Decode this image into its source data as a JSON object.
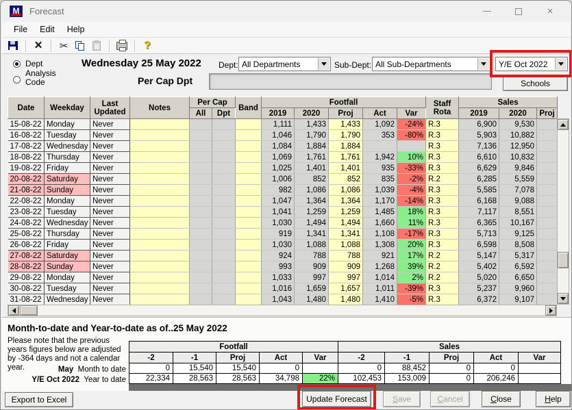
{
  "window": {
    "title": "Forecast"
  },
  "menu": {
    "items": [
      "File",
      "Edit",
      "Help"
    ]
  },
  "toolbar": {
    "icons": [
      "save-icon",
      "delete-icon",
      "cut-icon",
      "copy-icon",
      "paste-icon",
      "print-icon",
      "help-icon"
    ]
  },
  "controls": {
    "radio_dept": "Dept",
    "radio_analysis": "Analysis Code",
    "date_heading": "Wednesday 25 May 2022",
    "dept_label": "Dept:",
    "dept_value": "All Departments",
    "subdept_label": "Sub-Dept:",
    "subdept_value": "All Sub-Departments",
    "year_end_value": "Y/E Oct 2022",
    "percap_label": "Per Cap Dpt",
    "schools_button": "Schools"
  },
  "table": {
    "headers": {
      "date": "Date",
      "weekday": "Weekday",
      "last_updated": "Last Updated",
      "notes": "Notes",
      "per_cap": "Per Cap",
      "all": "All",
      "dpt": "Dpt",
      "band": "Band",
      "footfall": "Footfall",
      "staff_rota": "Staff Rota",
      "sales": "Sales",
      "footfall_cols": [
        "2019",
        "2020",
        "Proj",
        "Act",
        "Var"
      ],
      "sales_cols": [
        "2019",
        "2020",
        "Proj"
      ]
    },
    "rows": [
      {
        "date": "15-08-22",
        "weekday": "Monday",
        "updated": "Never",
        "weekend": false,
        "f2019": "1,111",
        "f2020": "1,433",
        "fproj": "1,433",
        "fact": "1,092",
        "fvar": "-24%",
        "var_color": "red",
        "rota": "R.3",
        "s2019": "6,900",
        "s2020": "9,530"
      },
      {
        "date": "16-08-22",
        "weekday": "Tuesday",
        "updated": "Never",
        "weekend": false,
        "f2019": "1,046",
        "f2020": "1,790",
        "fproj": "1,790",
        "fact": "353",
        "fvar": "-80%",
        "var_color": "red",
        "rota": "R.3",
        "s2019": "5,903",
        "s2020": "10,882"
      },
      {
        "date": "17-08-22",
        "weekday": "Wednesday",
        "updated": "Never",
        "weekend": false,
        "f2019": "1,084",
        "f2020": "1,884",
        "fproj": "1,884",
        "fact": "",
        "fvar": "",
        "var_color": null,
        "rota": "R.3",
        "s2019": "7,136",
        "s2020": "12,950"
      },
      {
        "date": "18-08-22",
        "weekday": "Thursday",
        "updated": "Never",
        "weekend": false,
        "f2019": "1,069",
        "f2020": "1,761",
        "fproj": "1,761",
        "fact": "1,942",
        "fvar": "10%",
        "var_color": "green",
        "rota": "R.3",
        "s2019": "6,610",
        "s2020": "10,832"
      },
      {
        "date": "19-08-22",
        "weekday": "Friday",
        "updated": "Never",
        "weekend": false,
        "f2019": "1,025",
        "f2020": "1,401",
        "fproj": "1,401",
        "fact": "935",
        "fvar": "-33%",
        "var_color": "red",
        "rota": "R.3",
        "s2019": "6,629",
        "s2020": "9,846"
      },
      {
        "date": "20-08-22",
        "weekday": "Saturday",
        "updated": "Never",
        "weekend": true,
        "f2019": "1,006",
        "f2020": "852",
        "fproj": "852",
        "fact": "835",
        "fvar": "-2%",
        "var_color": "red",
        "rota": "R.2",
        "s2019": "6,285",
        "s2020": "5,559"
      },
      {
        "date": "21-08-22",
        "weekday": "Sunday",
        "updated": "Never",
        "weekend": true,
        "f2019": "982",
        "f2020": "1,086",
        "fproj": "1,086",
        "fact": "1,039",
        "fvar": "-4%",
        "var_color": "red",
        "rota": "R.3",
        "s2019": "5,585",
        "s2020": "7,078"
      },
      {
        "date": "22-08-22",
        "weekday": "Monday",
        "updated": "Never",
        "weekend": false,
        "f2019": "1,047",
        "f2020": "1,364",
        "fproj": "1,364",
        "fact": "1,170",
        "fvar": "-14%",
        "var_color": "red",
        "rota": "R.3",
        "s2019": "6,168",
        "s2020": "9,088"
      },
      {
        "date": "23-08-22",
        "weekday": "Tuesday",
        "updated": "Never",
        "weekend": false,
        "f2019": "1,041",
        "f2020": "1,259",
        "fproj": "1,259",
        "fact": "1,485",
        "fvar": "18%",
        "var_color": "green",
        "rota": "R.3",
        "s2019": "7,117",
        "s2020": "8,551"
      },
      {
        "date": "24-08-22",
        "weekday": "Wednesday",
        "updated": "Never",
        "weekend": false,
        "f2019": "1,030",
        "f2020": "1,494",
        "fproj": "1,494",
        "fact": "1,660",
        "fvar": "11%",
        "var_color": "green",
        "rota": "R.3",
        "s2019": "6,365",
        "s2020": "10,167"
      },
      {
        "date": "25-08-22",
        "weekday": "Thursday",
        "updated": "Never",
        "weekend": false,
        "f2019": "919",
        "f2020": "1,341",
        "fproj": "1,341",
        "fact": "1,108",
        "fvar": "-17%",
        "var_color": "red",
        "rota": "R.3",
        "s2019": "5,713",
        "s2020": "9,125"
      },
      {
        "date": "26-08-22",
        "weekday": "Friday",
        "updated": "Never",
        "weekend": false,
        "f2019": "1,030",
        "f2020": "1,088",
        "fproj": "1,088",
        "fact": "1,308",
        "fvar": "20%",
        "var_color": "green",
        "rota": "R.3",
        "s2019": "6,598",
        "s2020": "8,508"
      },
      {
        "date": "27-08-22",
        "weekday": "Saturday",
        "updated": "Never",
        "weekend": true,
        "f2019": "924",
        "f2020": "788",
        "fproj": "788",
        "fact": "921",
        "fvar": "17%",
        "var_color": "green",
        "rota": "R.2",
        "s2019": "5,147",
        "s2020": "5,317"
      },
      {
        "date": "28-08-22",
        "weekday": "Sunday",
        "updated": "Never",
        "weekend": true,
        "f2019": "993",
        "f2020": "909",
        "fproj": "909",
        "fact": "1,268",
        "fvar": "39%",
        "var_color": "green",
        "rota": "R.2",
        "s2019": "5,402",
        "s2020": "6,592"
      },
      {
        "date": "29-08-22",
        "weekday": "Monday",
        "updated": "Never",
        "weekend": false,
        "f2019": "1,033",
        "f2020": "997",
        "fproj": "997",
        "fact": "1,014",
        "fvar": "2%",
        "var_color": "green",
        "rota": "R.2",
        "s2019": "5,020",
        "s2020": "6,650"
      },
      {
        "date": "30-08-22",
        "weekday": "Tuesday",
        "updated": "Never",
        "weekend": false,
        "f2019": "1,016",
        "f2020": "1,659",
        "fproj": "1,657",
        "fact": "1,011",
        "fvar": "-39%",
        "var_color": "red",
        "rota": "R.3",
        "s2019": "5,237",
        "s2020": "9,960"
      },
      {
        "date": "31-08-22",
        "weekday": "Wednesday",
        "updated": "Never",
        "weekend": false,
        "f2019": "1,043",
        "f2020": "1,480",
        "fproj": "1,480",
        "fact": "1,410",
        "fvar": "-5%",
        "var_color": "red",
        "rota": "R.3",
        "s2019": "6,372",
        "s2020": "9,107"
      }
    ]
  },
  "summary": {
    "title": "Month-to-date and Year-to-date as of...",
    "date": "25 May 2022",
    "note": "Please note that the previous years figures below are adjusted by -364 days and not a calendar year.",
    "groups": [
      "Footfall",
      "Sales"
    ],
    "col_headers": [
      "-2",
      "-1",
      "Proj",
      "Act",
      "Var"
    ],
    "rows": [
      {
        "label_bold": "May",
        "label": "Month to date",
        "footfall": [
          "0",
          "15,540",
          "15,540",
          "0",
          ""
        ],
        "sales": [
          "0",
          "88,452",
          "0",
          "0",
          ""
        ]
      },
      {
        "label_bold": "Y/E Oct 2022",
        "label": "Year to date",
        "footfall": [
          "22,334",
          "28,563",
          "28,563",
          "34,798",
          "22%"
        ],
        "sales": [
          "102,453",
          "153,009",
          "0",
          "206,246",
          ""
        ]
      }
    ]
  },
  "buttons": {
    "export": "Export to Excel",
    "update": "Update Forecast",
    "save": "Save",
    "cancel": "Cancel",
    "close": "Close",
    "help": "Help"
  },
  "colors": {
    "accent_red_box": "#d81d1d",
    "var_negative": "#f9756b",
    "var_positive": "#8bec8b",
    "editable_yellow": "#ffffc4",
    "weekend_pink": "#ffbdbd"
  }
}
